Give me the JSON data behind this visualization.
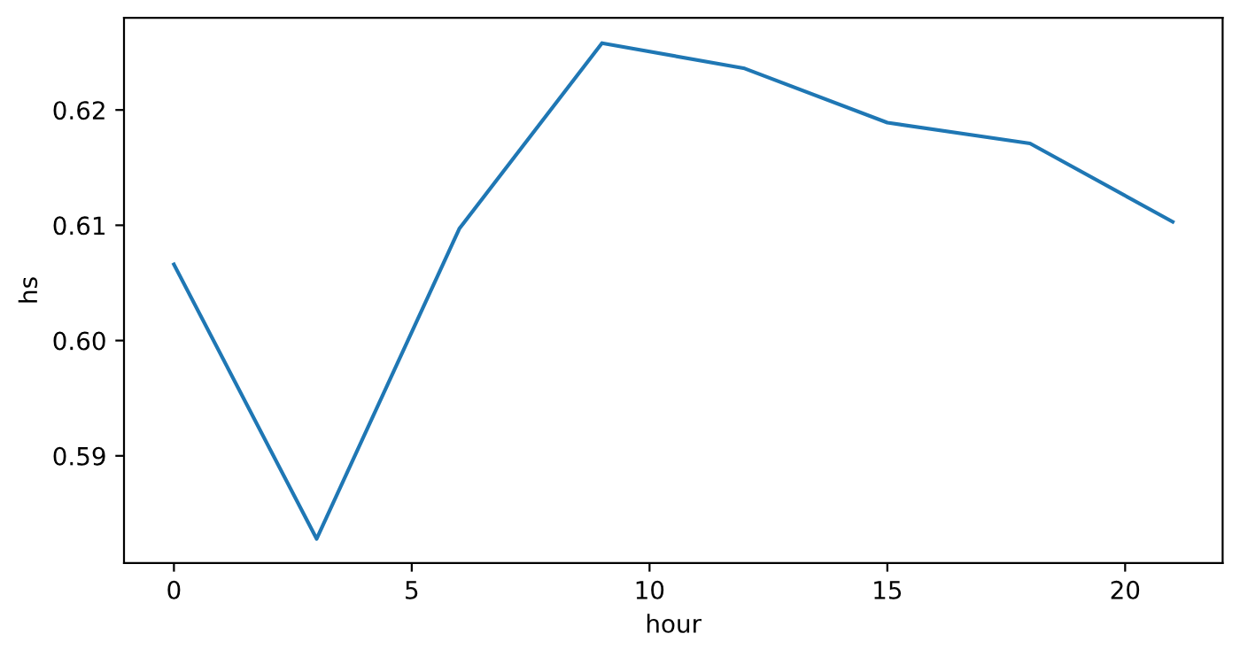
{
  "chart_data": {
    "type": "line",
    "xlabel": "hour",
    "ylabel": "hs",
    "x": [
      0,
      3,
      6,
      9,
      12,
      15,
      18,
      21
    ],
    "series": [
      {
        "color": "#1f77b4",
        "values": [
          0.6066,
          0.5828,
          0.6097,
          0.6258,
          0.6236,
          0.6189,
          0.6171,
          0.6103
        ]
      }
    ],
    "xlim": [
      -1.05,
      22.05
    ],
    "ylim": [
      0.5807,
      0.628
    ],
    "xticks": [
      0,
      5,
      10,
      15,
      20
    ],
    "yticks": [
      0.59,
      {
        "value": 0.6,
        "label": "0.60"
      },
      0.61,
      0.62
    ],
    "grid": false,
    "legend": false,
    "marker": "none",
    "line_style": "solid"
  }
}
